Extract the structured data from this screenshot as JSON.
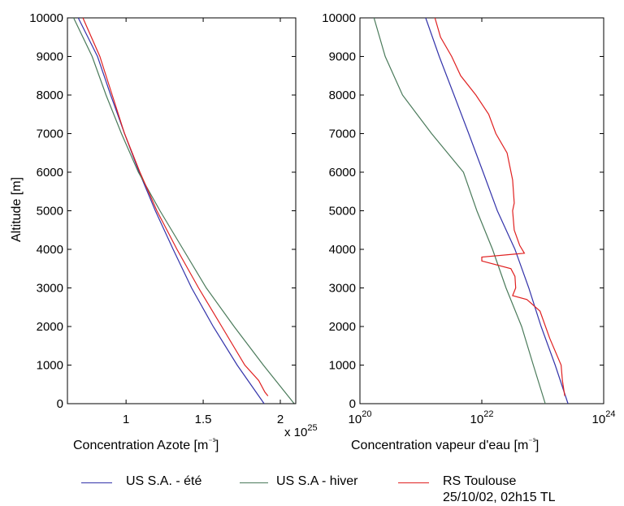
{
  "colors": {
    "ete": "#3333aa",
    "hiver": "#4a7a5a",
    "rs": "#e02020"
  },
  "legend": {
    "ete": "US S.A. - été",
    "hiver": "US S.A - hiver",
    "rs_line1": "RS Toulouse",
    "rs_line2": "25/10/02, 02h15 TL"
  },
  "chart_data": [
    {
      "type": "line",
      "ylabel": "Altitude  [m]",
      "xlabel": "Concentration Azote [m⁻³]",
      "x_multiplier_label": "x 10",
      "x_multiplier_exp": "25",
      "xlim": [
        0.62,
        2.1
      ],
      "ylim": [
        0,
        10000
      ],
      "x_ticks": [
        "1",
        "1.5",
        "2"
      ],
      "x_tick_values": [
        1,
        1.5,
        2
      ],
      "y_ticks": [
        "0",
        "1000",
        "2000",
        "3000",
        "4000",
        "5000",
        "6000",
        "7000",
        "8000",
        "9000",
        "10000"
      ],
      "series": [
        {
          "name": "US S.A. - été",
          "points": [
            [
              1.895,
              0
            ],
            [
              1.72,
              1000
            ],
            [
              1.565,
              2000
            ],
            [
              1.425,
              3000
            ],
            [
              1.305,
              4000
            ],
            [
              1.19,
              5000
            ],
            [
              1.085,
              6000
            ],
            [
              0.99,
              7000
            ],
            [
              0.9,
              8000
            ],
            [
              0.815,
              9000
            ],
            [
              0.69,
              10000
            ]
          ]
        },
        {
          "name": "US S.A - hiver",
          "points": [
            [
              2.09,
              0
            ],
            [
              1.89,
              1000
            ],
            [
              1.7,
              2000
            ],
            [
              1.52,
              3000
            ],
            [
              1.37,
              4000
            ],
            [
              1.22,
              5000
            ],
            [
              1.08,
              6000
            ],
            [
              0.97,
              7000
            ],
            [
              0.87,
              8000
            ],
            [
              0.78,
              9000
            ],
            [
              0.66,
              10000
            ]
          ]
        },
        {
          "name": "RS Toulouse 25/10/02, 02h15 TL",
          "points": [
            [
              1.92,
              200
            ],
            [
              1.9,
              300
            ],
            [
              1.86,
              600
            ],
            [
              1.77,
              1000
            ],
            [
              1.62,
              2000
            ],
            [
              1.47,
              3000
            ],
            [
              1.33,
              4000
            ],
            [
              1.2,
              5000
            ],
            [
              1.09,
              6000
            ],
            [
              0.99,
              7000
            ],
            [
              0.91,
              8000
            ],
            [
              0.83,
              9000
            ],
            [
              0.72,
              10000
            ]
          ]
        }
      ]
    },
    {
      "type": "line",
      "xscale": "log",
      "xlabel": "Concentration vapeur d'eau [m⁻³]",
      "xlim": [
        1e+20,
        1e+24
      ],
      "ylim": [
        0,
        10000
      ],
      "x_ticks": [
        "10^20",
        "10^22",
        "10^24"
      ],
      "y_ticks": [
        "0",
        "1000",
        "2000",
        "3000",
        "4000",
        "5000",
        "6000",
        "7000",
        "8000",
        "9000",
        "10000"
      ],
      "series": [
        {
          "name": "US S.A. - été",
          "points": [
            [
              2.6e+23,
              0
            ],
            [
              1.6e+23,
              1000
            ],
            [
              9.4e+22,
              2000
            ],
            [
              5.9e+22,
              3000
            ],
            [
              3.5e+22,
              4000
            ],
            [
              1.8e+22,
              5000
            ],
            [
              1.05e+22,
              6000
            ],
            [
              6.1e+21,
              7000
            ],
            [
              3.5e+21,
              8000
            ],
            [
              2e+21,
              9000
            ],
            [
              1.2e+21,
              10000
            ]
          ]
        },
        {
          "name": "US S.A - hiver",
          "points": [
            [
              1.1e+23,
              0
            ],
            [
              7e+22,
              1000
            ],
            [
              4.5e+22,
              2000
            ],
            [
              2.5e+22,
              3000
            ],
            [
              1.5e+22,
              4000
            ],
            [
              8.3e+21,
              5000
            ],
            [
              5e+21,
              6000
            ],
            [
              1.5e+21,
              7000
            ],
            [
              5e+20,
              8000
            ],
            [
              2.6e+20,
              9000
            ],
            [
              1.7e+20,
              10000
            ]
          ]
        },
        {
          "name": "RS Toulouse 25/10/02, 02h15 TL",
          "points": [
            [
              2.3e+23,
              200
            ],
            [
              2.1e+23,
              600
            ],
            [
              2e+23,
              1000
            ],
            [
              1.3e+23,
              1700
            ],
            [
              9e+22,
              2400
            ],
            [
              5.5e+22,
              2700
            ],
            [
              3.2e+22,
              2800
            ],
            [
              3.6e+22,
              3000
            ],
            [
              3.5e+22,
              3300
            ],
            [
              3e+22,
              3500
            ],
            [
              1e+22,
              3700
            ],
            [
              1e+22,
              3800
            ],
            [
              5e+22,
              3900
            ],
            [
              4.2e+22,
              4100
            ],
            [
              3.4e+22,
              4500
            ],
            [
              3.2e+22,
              5000
            ],
            [
              3.4e+22,
              5200
            ],
            [
              3.2e+22,
              5800
            ],
            [
              2.6e+22,
              6500
            ],
            [
              1.7e+22,
              7000
            ],
            [
              1.3e+22,
              7500
            ],
            [
              8e+21,
              8000
            ],
            [
              4.5e+21,
              8500
            ],
            [
              3.2e+21,
              9000
            ],
            [
              2.1e+21,
              9500
            ],
            [
              1.7e+21,
              10000
            ]
          ]
        }
      ]
    }
  ]
}
